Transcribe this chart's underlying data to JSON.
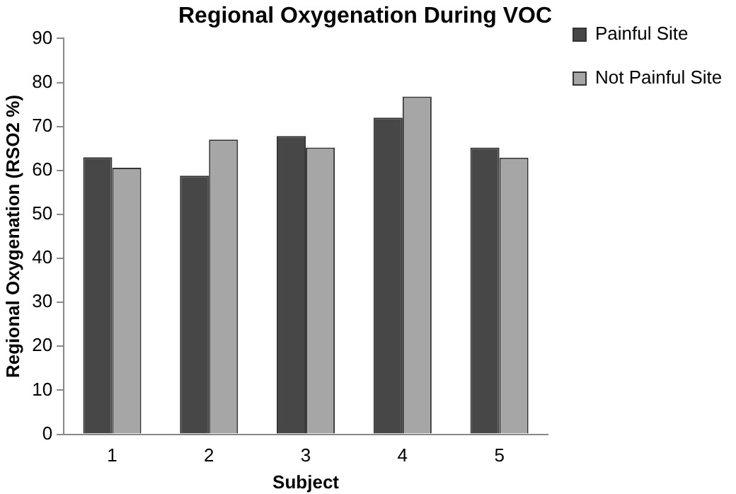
{
  "chart_data": {
    "type": "bar",
    "title": "Regional Oxygenation During VOC",
    "xlabel": "Subject",
    "ylabel": "Regional Oxygenation (RSO2 %)",
    "categories": [
      "1",
      "2",
      "3",
      "4",
      "5"
    ],
    "series": [
      {
        "name": "Painful Site",
        "color": "#474747",
        "values": [
          63,
          58.8,
          67.8,
          72,
          65.2
        ]
      },
      {
        "name": "Not Painful Site",
        "color": "#a6a6a6",
        "values": [
          60.6,
          67,
          65.2,
          76.8,
          62.9
        ]
      }
    ],
    "ylim": [
      0,
      90
    ],
    "yticks": [
      0,
      10,
      20,
      30,
      40,
      50,
      60,
      70,
      80,
      90
    ],
    "grid": false,
    "legend": "top right"
  }
}
